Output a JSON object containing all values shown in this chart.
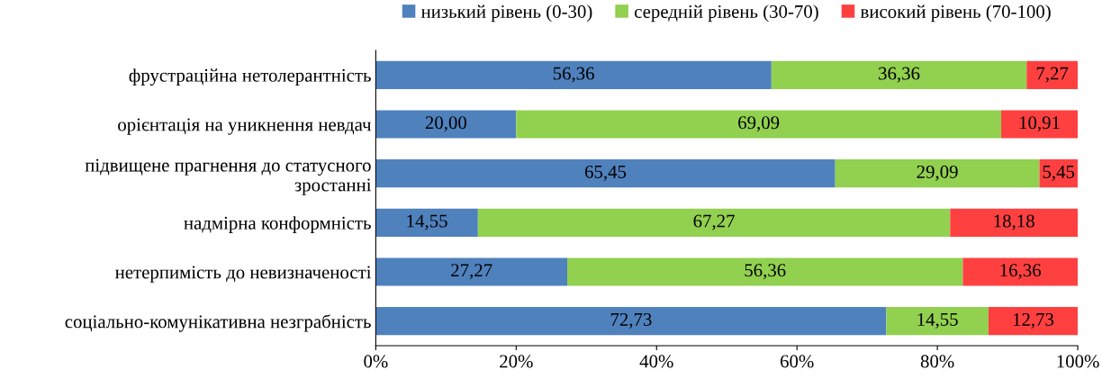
{
  "chart_data": {
    "type": "bar",
    "orientation": "horizontal",
    "stacked": true,
    "categories": [
      "фрустраційна нетолерантність",
      "орієнтація на уникнення невдач",
      "підвищене прагнення до статусного\nзростанні",
      "надмірна конформність",
      "нетерпимість до невизначеності",
      "соціально-комунікативна незграбність"
    ],
    "series": [
      {
        "name": "низький рівень (0-30)",
        "color": "#4f81bd",
        "values": [
          56.36,
          20.0,
          65.45,
          14.55,
          27.27,
          72.73
        ],
        "value_labels": [
          "56,36",
          "20,00",
          "65,45",
          "14,55",
          "27,27",
          "72,73"
        ]
      },
      {
        "name": "середній рівень (30-70)",
        "color": "#92d050",
        "values": [
          36.36,
          69.09,
          29.09,
          67.27,
          56.36,
          14.55
        ],
        "value_labels": [
          "36,36",
          "69,09",
          "29,09",
          "67,27",
          "56,36",
          "14,55"
        ]
      },
      {
        "name": "високий рівень (70-100)",
        "color": "#ff4040",
        "values": [
          7.27,
          10.91,
          5.45,
          18.18,
          16.36,
          12.73
        ],
        "value_labels": [
          "7,27",
          "10,91",
          "5,45",
          "18,18",
          "16,36",
          "12,73"
        ]
      }
    ],
    "xlim": [
      0,
      100
    ],
    "xticks": [
      {
        "value": 0,
        "label": "0%"
      },
      {
        "value": 20,
        "label": "20%"
      },
      {
        "value": 40,
        "label": "40%"
      },
      {
        "value": 60,
        "label": "60%"
      },
      {
        "value": 80,
        "label": "80%"
      },
      {
        "value": 100,
        "label": "100%"
      }
    ],
    "grid": false,
    "legend": "top"
  }
}
